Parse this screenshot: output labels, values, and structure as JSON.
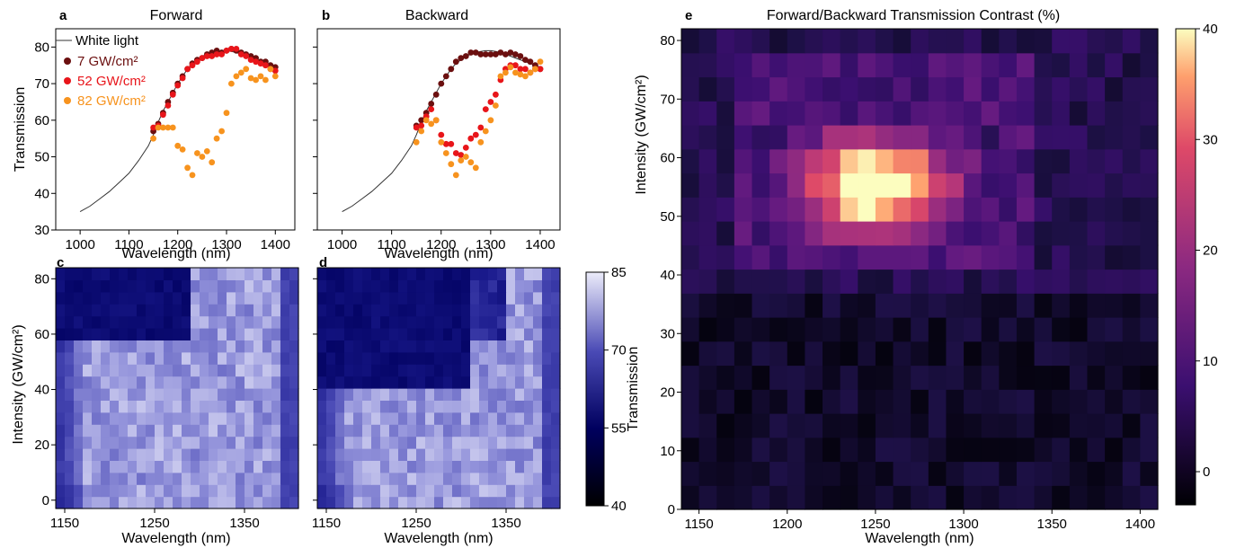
{
  "panels": {
    "a": {
      "letter": "a",
      "title": "Forward"
    },
    "b": {
      "letter": "b",
      "title": "Backward"
    },
    "c": {
      "letter": "c"
    },
    "d": {
      "letter": "d"
    },
    "e": {
      "letter": "e",
      "title": "Forward/Backward Transmission Contrast (%)"
    }
  },
  "labels": {
    "wavelength": "Wavelength (nm)",
    "transmission": "Transmission",
    "intensity": "Intensity (GW/cm²)"
  },
  "legend": {
    "white_light": "White light",
    "s7": "7   GW/cm²",
    "s52": "52 GW/cm²",
    "s82": "82 GW/cm²"
  },
  "colors": {
    "white_light": "#333333",
    "s7": "#6b0f0f",
    "s52": "#e8151a",
    "s82": "#f7931e"
  },
  "chart_data": [
    {
      "id": "a",
      "type": "scatter",
      "title": "Forward",
      "xlabel": "Wavelength (nm)",
      "ylabel": "Transmission",
      "xlim": [
        950,
        1440
      ],
      "ylim": [
        30,
        85
      ],
      "xticks": [
        1000,
        1100,
        1200,
        1300,
        1400
      ],
      "yticks": [
        30,
        40,
        50,
        60,
        70,
        80
      ],
      "legend_position": "top-left",
      "series": [
        {
          "name": "White light",
          "kind": "line",
          "x": [
            1000,
            1020,
            1040,
            1060,
            1080,
            1100,
            1120,
            1140,
            1150,
            1160,
            1170,
            1180,
            1190,
            1200,
            1210,
            1220,
            1230,
            1240,
            1250,
            1260,
            1270,
            1280,
            1290,
            1300,
            1310,
            1320,
            1330,
            1340,
            1350,
            1360,
            1370,
            1380,
            1390,
            1400
          ],
          "y": [
            35,
            36.5,
            38.5,
            40.5,
            43,
            45.5,
            49,
            53,
            56,
            59.5,
            62.5,
            65,
            67.5,
            70,
            72,
            74,
            75.5,
            76.5,
            77.5,
            78,
            78.5,
            78.8,
            79,
            79,
            78.8,
            78.5,
            78,
            77.5,
            77,
            76.5,
            76,
            75.5,
            75,
            74.5
          ]
        },
        {
          "name": "7   GW/cm²",
          "kind": "points",
          "x": [
            1150,
            1160,
            1170,
            1180,
            1190,
            1200,
            1210,
            1220,
            1230,
            1240,
            1250,
            1260,
            1270,
            1280,
            1290,
            1300,
            1310,
            1320,
            1330,
            1340,
            1350,
            1360,
            1370,
            1380,
            1390,
            1400
          ],
          "y": [
            57,
            59,
            62,
            65,
            67.5,
            70,
            72,
            74,
            75.5,
            76.5,
            77,
            78,
            78.5,
            79,
            78.5,
            79,
            79.5,
            79,
            78.5,
            78,
            77.5,
            77,
            76,
            76,
            75,
            74.5
          ]
        },
        {
          "name": "52 GW/cm²",
          "kind": "points",
          "x": [
            1150,
            1160,
            1170,
            1180,
            1190,
            1200,
            1210,
            1220,
            1230,
            1240,
            1250,
            1260,
            1270,
            1280,
            1290,
            1300,
            1310,
            1320,
            1330,
            1340,
            1350,
            1360,
            1370,
            1380,
            1390,
            1400
          ],
          "y": [
            58,
            58.5,
            61.5,
            64,
            67,
            69.5,
            71.5,
            74,
            75,
            76,
            77,
            77.5,
            77.5,
            78,
            78,
            79,
            79.5,
            79.5,
            78,
            77.5,
            76.5,
            76,
            75.5,
            75,
            74,
            73.5
          ]
        },
        {
          "name": "82 GW/cm²",
          "kind": "points",
          "x": [
            1150,
            1160,
            1170,
            1180,
            1190,
            1200,
            1210,
            1220,
            1230,
            1240,
            1250,
            1260,
            1270,
            1280,
            1290,
            1300,
            1310,
            1320,
            1330,
            1340,
            1350,
            1360,
            1370,
            1380,
            1390,
            1400
          ],
          "y": [
            55,
            58,
            58,
            58,
            58,
            53,
            52,
            47,
            45,
            51,
            50,
            51.5,
            48.5,
            55,
            57,
            62,
            70,
            72,
            73,
            74,
            71.5,
            71,
            72,
            71,
            74,
            72
          ]
        }
      ]
    },
    {
      "id": "b",
      "type": "scatter",
      "title": "Backward",
      "xlabel": "Wavelength (nm)",
      "xlim": [
        950,
        1440
      ],
      "ylim": [
        30,
        85
      ],
      "xticks": [
        1000,
        1100,
        1200,
        1300,
        1400
      ],
      "yticks": [
        30,
        40,
        50,
        60,
        70,
        80
      ],
      "series": [
        {
          "name": "White light",
          "kind": "line",
          "x": [
            1000,
            1020,
            1040,
            1060,
            1080,
            1100,
            1120,
            1140,
            1150,
            1160,
            1170,
            1180,
            1190,
            1200,
            1210,
            1220,
            1230,
            1240,
            1250,
            1260,
            1270,
            1280,
            1290,
            1300,
            1310,
            1320,
            1330,
            1340,
            1350,
            1360,
            1370,
            1380,
            1390,
            1400
          ],
          "y": [
            35,
            36.5,
            38.5,
            40.5,
            43,
            45.5,
            49,
            53,
            56,
            59.5,
            62.5,
            65,
            67.5,
            70,
            72,
            74,
            75.5,
            76.5,
            77.5,
            78,
            78.5,
            78.8,
            79,
            79,
            78.8,
            78.5,
            78,
            77.5,
            77,
            76.5,
            76,
            75.5,
            75,
            74.5
          ]
        },
        {
          "name": "7   GW/cm²",
          "kind": "points",
          "x": [
            1150,
            1160,
            1170,
            1180,
            1190,
            1200,
            1210,
            1220,
            1230,
            1240,
            1250,
            1260,
            1270,
            1280,
            1290,
            1300,
            1310,
            1320,
            1330,
            1340,
            1350,
            1360,
            1370,
            1380,
            1390,
            1400
          ],
          "y": [
            58.5,
            60,
            62,
            64.5,
            67,
            70,
            72,
            74,
            76,
            77,
            77.5,
            78.5,
            78.5,
            78,
            78,
            78,
            78,
            78.5,
            78,
            78.5,
            78,
            77.5,
            76.5,
            76,
            75,
            74
          ]
        },
        {
          "name": "52 GW/cm²",
          "kind": "points",
          "x": [
            1150,
            1160,
            1170,
            1180,
            1190,
            1200,
            1210,
            1220,
            1230,
            1240,
            1250,
            1260,
            1270,
            1280,
            1290,
            1300,
            1310,
            1320,
            1330,
            1340,
            1350,
            1360,
            1370,
            1380,
            1390,
            1400
          ],
          "y": [
            58,
            58.5,
            61,
            63,
            60,
            56,
            53.5,
            53.5,
            51,
            50.5,
            52.5,
            55,
            56,
            58,
            63,
            65,
            67,
            71,
            74,
            75,
            75,
            74,
            74,
            73,
            74,
            74
          ]
        },
        {
          "name": "82 GW/cm²",
          "kind": "points",
          "x": [
            1150,
            1160,
            1170,
            1180,
            1190,
            1200,
            1210,
            1220,
            1230,
            1240,
            1250,
            1260,
            1270,
            1280,
            1290,
            1300,
            1310,
            1320,
            1330,
            1340,
            1350,
            1360,
            1370,
            1380,
            1390,
            1400
          ],
          "y": [
            54,
            57,
            60,
            59,
            60,
            54,
            51,
            48,
            45,
            49,
            50,
            48.5,
            47,
            54,
            57,
            60,
            64,
            72,
            73,
            74.5,
            73,
            72.5,
            72,
            73,
            74,
            76
          ]
        }
      ]
    },
    {
      "id": "c",
      "type": "heatmap",
      "xlabel": "Wavelength (nm)",
      "ylabel": "Intensity (GW/cm²)",
      "xlim": [
        1140,
        1410
      ],
      "ylim": [
        -3,
        84
      ],
      "xticks": [
        1150,
        1250,
        1350
      ],
      "yticks": [
        0,
        20,
        40,
        60,
        80
      ],
      "colorbar": {
        "label": "Transmission",
        "range": [
          40,
          85
        ],
        "ticks": [
          40,
          55,
          70,
          85
        ],
        "colormap": "black-blue-white"
      },
      "grid": {
        "x_start": 1140,
        "x_step": 10,
        "x_count": 27,
        "y_start": -3,
        "y_step": 4.35,
        "y_count": 20
      },
      "description_of_values": "Transmission ~50-55 in top-left block (x<1300, I>=61), ~64-70 at left edge, ~75-82 central region"
    },
    {
      "id": "d",
      "type": "heatmap",
      "xlabel": "Wavelength (nm)",
      "xlim": [
        1140,
        1410
      ],
      "ylim": [
        -3,
        84
      ],
      "xticks": [
        1150,
        1250,
        1350
      ],
      "yticks": [
        0,
        20,
        40,
        60,
        80
      ],
      "grid": {
        "x_start": 1140,
        "x_step": 10,
        "x_count": 27,
        "y_start": -3,
        "y_step": 4.35,
        "y_count": 20
      }
    },
    {
      "id": "e",
      "type": "heatmap",
      "title": "Forward/Backward Transmission Contrast (%)",
      "xlabel": "Wavelength (nm)",
      "ylabel": "Intensity (GW/cm²)",
      "xlim": [
        1140,
        1410
      ],
      "ylim": [
        0,
        82
      ],
      "xticks": [
        1150,
        1200,
        1250,
        1300,
        1350,
        1400
      ],
      "yticks": [
        0,
        10,
        20,
        30,
        40,
        50,
        60,
        70,
        80
      ],
      "colorbar": {
        "range": [
          -3,
          40
        ],
        "ticks": [
          0,
          10,
          20,
          30,
          40
        ],
        "colormap": "magma"
      },
      "grid": {
        "x_start": 1140,
        "x_step": 10,
        "x_count": 27,
        "y_start": 0,
        "y_step": 4.1,
        "y_count": 20
      },
      "hotspot": {
        "center_wavelength": 1250,
        "intensity_range": [
          45,
          66
        ],
        "peak_contrast": 40
      }
    }
  ]
}
